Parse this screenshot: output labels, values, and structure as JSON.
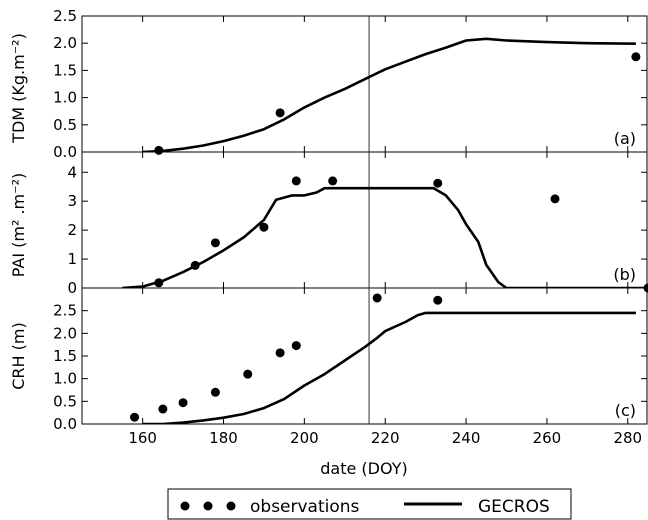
{
  "chart_data": [
    {
      "type": "line",
      "panel_label": "(a)",
      "ylabel": "TDM (Kg.m⁻²)",
      "xlim": [
        145,
        285
      ],
      "ylim": [
        0,
        2.5
      ],
      "yticks": [
        "0.0",
        "0.5",
        "1.0",
        "1.5",
        "2.0",
        "2.5"
      ],
      "yticks_values": [
        0,
        0.5,
        1.0,
        1.5,
        2.0,
        2.5
      ],
      "series": [
        {
          "name": "GECROS",
          "x": [
            160,
            165,
            170,
            175,
            180,
            185,
            190,
            195,
            200,
            205,
            210,
            215,
            220,
            225,
            230,
            235,
            240,
            245,
            250,
            260,
            270,
            282
          ],
          "y": [
            0.0,
            0.02,
            0.06,
            0.12,
            0.2,
            0.3,
            0.42,
            0.6,
            0.82,
            1.0,
            1.16,
            1.34,
            1.52,
            1.66,
            1.8,
            1.92,
            2.05,
            2.08,
            2.05,
            2.02,
            2.0,
            1.99
          ]
        },
        {
          "name": "observations",
          "x": [
            164,
            194,
            282
          ],
          "y": [
            0.03,
            0.72,
            1.75
          ]
        }
      ]
    },
    {
      "type": "line",
      "panel_label": "(b)",
      "ylabel": "PAI (m² .m⁻²)",
      "xlim": [
        145,
        285
      ],
      "ylim": [
        0,
        4.7
      ],
      "yticks": [
        "0",
        "1",
        "2",
        "3",
        "4"
      ],
      "yticks_values": [
        0,
        1,
        2,
        3,
        4
      ],
      "series": [
        {
          "name": "GECROS",
          "x": [
            155,
            160,
            165,
            170,
            175,
            180,
            185,
            190,
            193,
            197,
            200,
            203,
            205,
            210,
            215,
            220,
            225,
            229,
            232,
            235,
            238,
            240,
            243,
            245,
            248,
            250,
            285
          ],
          "y": [
            0.0,
            0.05,
            0.25,
            0.55,
            0.9,
            1.3,
            1.75,
            2.35,
            3.05,
            3.2,
            3.2,
            3.3,
            3.45,
            3.45,
            3.45,
            3.45,
            3.45,
            3.45,
            3.45,
            3.2,
            2.7,
            2.2,
            1.6,
            0.8,
            0.2,
            0.0,
            0.0
          ]
        },
        {
          "name": "observations",
          "x": [
            164,
            173,
            178,
            190,
            198,
            207,
            233,
            262,
            285
          ],
          "y": [
            0.18,
            0.78,
            1.56,
            2.1,
            3.7,
            3.7,
            3.62,
            3.08,
            0.0
          ]
        }
      ]
    },
    {
      "type": "line",
      "panel_label": "(c)",
      "ylabel": "CRH (m)",
      "xlabel": "date (DOY)",
      "xlim": [
        145,
        285
      ],
      "ylim": [
        0,
        3.0
      ],
      "xticks": [
        "160",
        "180",
        "200",
        "220",
        "240",
        "260",
        "280"
      ],
      "xticks_values": [
        160,
        180,
        200,
        220,
        240,
        260,
        280
      ],
      "yticks": [
        "0.0",
        "0.5",
        "1.0",
        "1.5",
        "2.0",
        "2.5"
      ],
      "yticks_values": [
        0,
        0.5,
        1.0,
        1.5,
        2.0,
        2.5
      ],
      "series": [
        {
          "name": "GECROS",
          "x": [
            160,
            165,
            170,
            175,
            180,
            185,
            190,
            195,
            200,
            205,
            210,
            215,
            218,
            220,
            225,
            228,
            230,
            240,
            260,
            282
          ],
          "y": [
            0.0,
            0.0,
            0.03,
            0.08,
            0.14,
            0.22,
            0.35,
            0.55,
            0.85,
            1.1,
            1.4,
            1.7,
            1.9,
            2.05,
            2.25,
            2.4,
            2.45,
            2.45,
            2.45,
            2.45
          ]
        },
        {
          "name": "observations",
          "x": [
            158,
            165,
            170,
            178,
            186,
            194,
            198,
            218,
            233
          ],
          "y": [
            0.15,
            0.33,
            0.47,
            0.7,
            1.1,
            1.57,
            1.73,
            2.78,
            2.73
          ]
        }
      ]
    }
  ],
  "vline_x": 216,
  "legend": {
    "observations_label": "observations",
    "model_label": "GECROS",
    "placement": "bottom-center"
  },
  "colors": {
    "line": "#000000",
    "marker": "#000000"
  }
}
